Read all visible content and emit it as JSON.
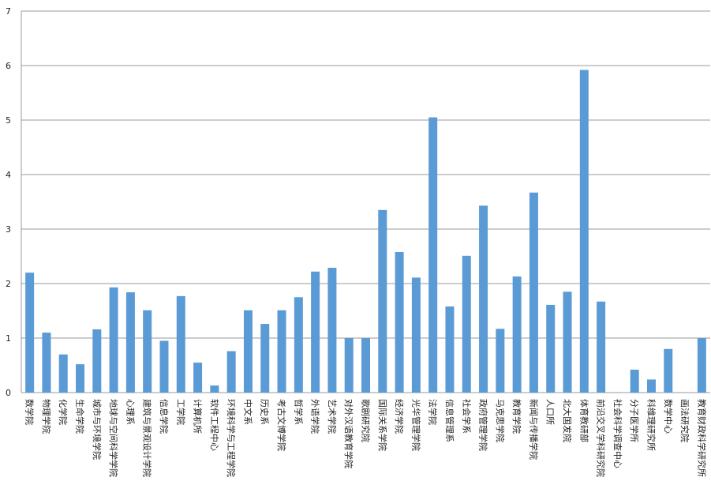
{
  "chart_data": {
    "type": "bar",
    "categories": [
      "数学院",
      "物理学院",
      "化学院",
      "生命学院",
      "城市与环境学院",
      "地球与空间科学学院",
      "心理系",
      "建筑与景观设计学院",
      "信息学院",
      "工学院",
      "计算机所",
      "软件工程中心",
      "环境科学与工程学院",
      "中文系",
      "历史系",
      "考古文博学院",
      "哲学系",
      "外语学院",
      "艺术学院",
      "对外汉语教育学院",
      "歌剧研究院",
      "国际关系学院",
      "经济学院",
      "光华管理学院",
      "法学院",
      "信息管理系",
      "社会学系",
      "政府管理学院",
      "马克思学院",
      "教育学院",
      "新闻与传播学院",
      "人口所",
      "北大国发院",
      "体育教研部",
      "前沿交叉学科研究院",
      "社会科学调查中心",
      "分子医学所",
      "科维理研究所",
      "数学中心",
      "画法研究院",
      "教育财政科学研究所"
    ],
    "values": [
      2.2,
      1.1,
      0.7,
      0.52,
      1.16,
      1.93,
      1.84,
      1.51,
      0.95,
      1.77,
      0.55,
      0.13,
      0.76,
      1.51,
      1.26,
      1.51,
      1.75,
      2.22,
      2.29,
      1.0,
      1.0,
      3.35,
      2.58,
      2.11,
      5.05,
      1.58,
      2.51,
      3.43,
      1.17,
      2.13,
      3.67,
      1.61,
      1.85,
      5.92,
      1.67,
      0,
      0.42,
      0.24,
      0.8,
      0,
      1.0
    ],
    "color": "#5b9bd5",
    "ylim": [
      0,
      7
    ],
    "yticks": [
      0,
      1,
      2,
      3,
      4,
      5,
      6,
      7
    ],
    "grid": true
  }
}
